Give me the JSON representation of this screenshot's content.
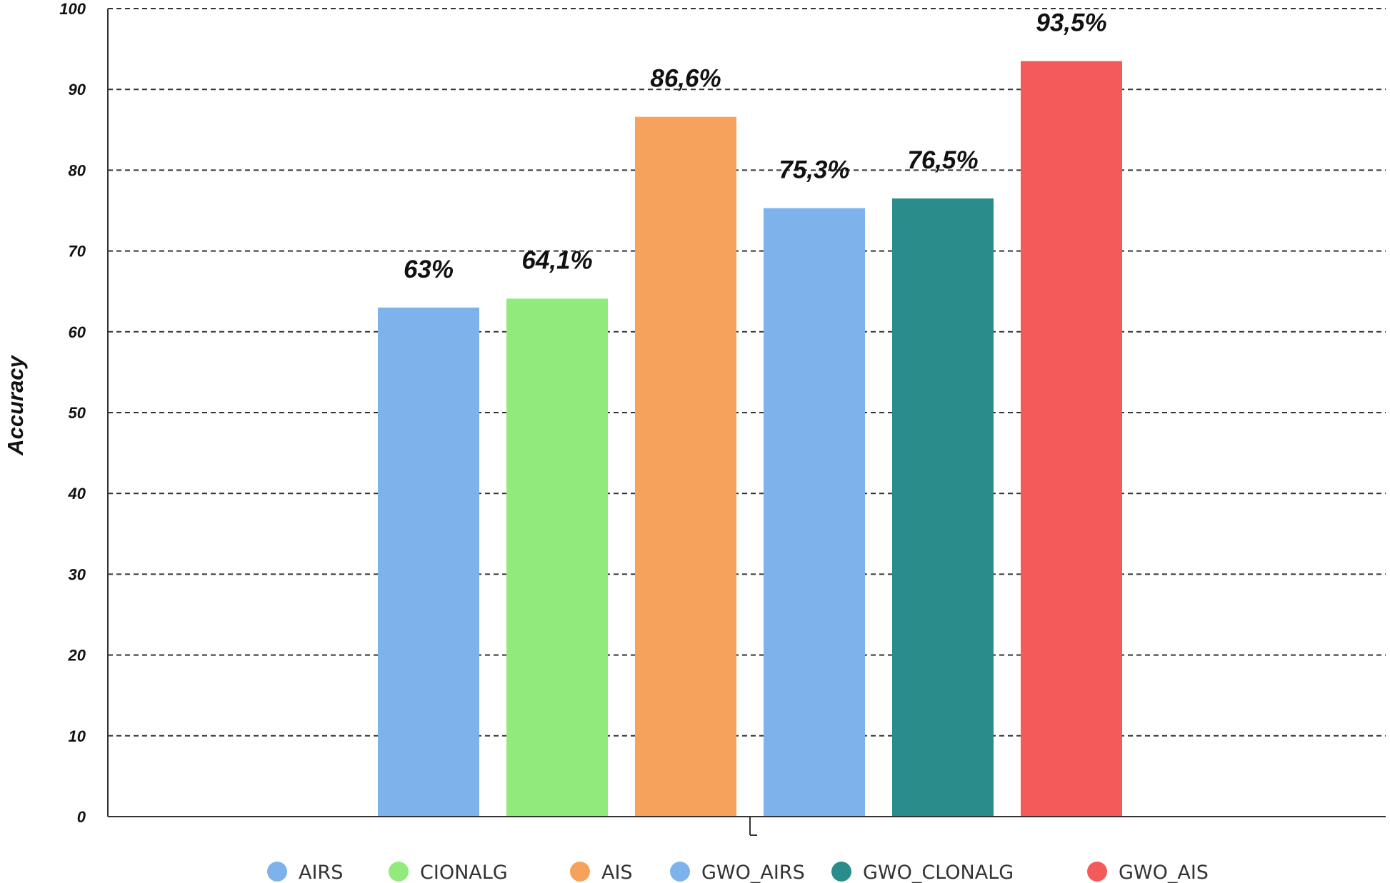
{
  "chart_data": {
    "type": "bar",
    "title": "",
    "xlabel": "",
    "ylabel": "Accuracy",
    "ylim": [
      0,
      100
    ],
    "yticks": [
      "0",
      "10",
      "20",
      "30",
      "40",
      "50",
      "60",
      "70",
      "80",
      "90",
      "100"
    ],
    "grid": true,
    "legend_position": "bottom",
    "categories": [
      "AIRS",
      "CIONALG",
      "AIS",
      "GWO_AIRS",
      "GWO_CLONALG",
      "GWO_AIS"
    ],
    "values": [
      63,
      64.1,
      86.6,
      75.3,
      76.5,
      93.5
    ],
    "data_labels": [
      "63%",
      "64,1%",
      "86,6%",
      "75,3%",
      "76,5%",
      "93,5%"
    ],
    "colors": [
      "#7db3ea",
      "#91eb7c",
      "#f6a25c",
      "#7db3ea",
      "#2a8c8b",
      "#f35b5b"
    ]
  }
}
